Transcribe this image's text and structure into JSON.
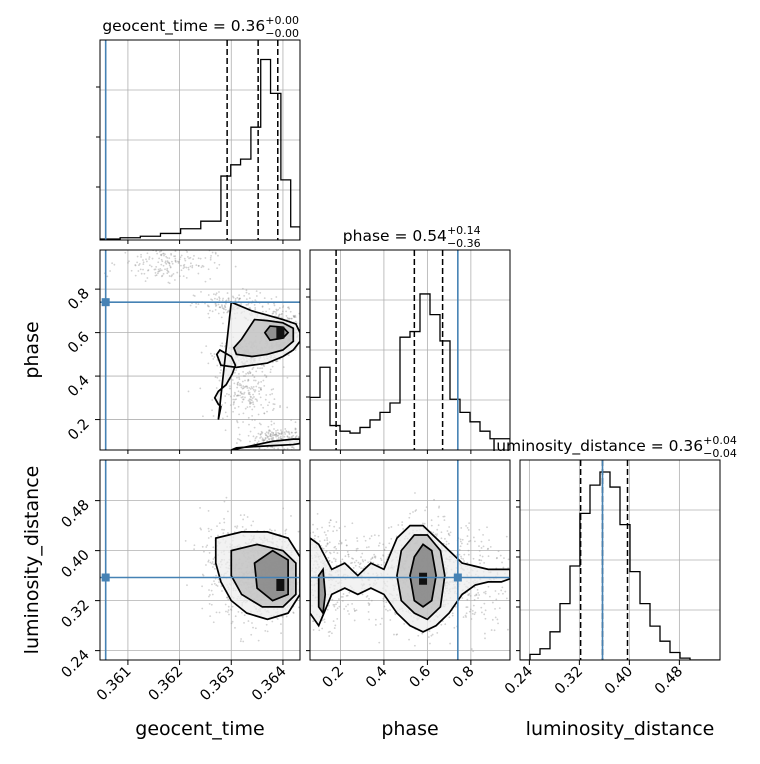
{
  "colors": {
    "truth": "#4682b4",
    "hist": "#000000",
    "grid": "#b0b0b0",
    "scatter": "#9a9a9a",
    "frame": "#000000"
  },
  "chart_data": {
    "type": "corner",
    "parameters": [
      "geocent_time",
      "phase",
      "luminosity_distance"
    ],
    "axis_labels": {
      "geocent_time": "geocent_time",
      "phase": "phase",
      "luminosity_distance": "luminosity_distance"
    },
    "ranges": {
      "geocent_time": [
        0.36046,
        0.36433
      ],
      "phase": [
        0.06,
        0.98
      ],
      "luminosity_distance": [
        0.225,
        0.545
      ]
    },
    "ticks": {
      "geocent_time": {
        "values": [
          0.361,
          0.362,
          0.363,
          0.364
        ],
        "labels": [
          "0.361",
          "0.362",
          "0.363",
          "0.364"
        ]
      },
      "phase": {
        "values": [
          0.2,
          0.4,
          0.6,
          0.8
        ],
        "labels": [
          "0.2",
          "0.4",
          "0.6",
          "0.8"
        ]
      },
      "luminosity_distance": {
        "values": [
          0.24,
          0.32,
          0.4,
          0.48
        ],
        "labels": [
          "0.24",
          "0.32",
          "0.40",
          "0.48"
        ]
      }
    },
    "truths": {
      "geocent_time": 0.36057,
      "phase": 0.74,
      "luminosity_distance": 0.357
    },
    "titles": [
      {
        "param": "geocent_time",
        "text": "geocent_time = 0.36",
        "sup": "+0.00",
        "sub": "−0.00"
      },
      {
        "param": "phase",
        "text": "phase = 0.54",
        "sup": "+0.14",
        "sub": "−0.36"
      },
      {
        "param": "luminosity_distance",
        "text": "luminosity_distance = 0.36",
        "sup": "+0.04",
        "sub": "−0.04"
      }
    ],
    "quantiles": {
      "geocent_time": [
        0.36292,
        0.36352,
        0.3639
      ],
      "phase": [
        0.18,
        0.54,
        0.67
      ],
      "luminosity_distance": [
        0.322,
        0.357,
        0.397
      ]
    },
    "histograms": {
      "geocent_time": {
        "edges": [
          0.36046,
          0.36085,
          0.36124,
          0.36163,
          0.36202,
          0.36241,
          0.3628,
          0.36299,
          0.36318,
          0.36338,
          0.36357,
          0.36376,
          0.36396,
          0.36415,
          0.36433
        ],
        "counts": [
          0.005,
          0.012,
          0.02,
          0.035,
          0.06,
          0.1,
          0.34,
          0.4,
          0.43,
          0.6,
          0.96,
          0.78,
          0.32,
          0.07
        ]
      },
      "phase": {
        "edges": [
          0.06,
          0.106,
          0.152,
          0.198,
          0.244,
          0.29,
          0.336,
          0.382,
          0.428,
          0.474,
          0.52,
          0.566,
          0.612,
          0.658,
          0.704,
          0.75,
          0.796,
          0.842,
          0.888,
          0.934,
          0.98
        ],
        "counts": [
          0.28,
          0.44,
          0.13,
          0.1,
          0.09,
          0.12,
          0.16,
          0.2,
          0.25,
          0.6,
          0.63,
          0.83,
          0.72,
          0.58,
          0.27,
          0.2,
          0.15,
          0.1,
          0.06,
          0.06
        ]
      },
      "luminosity_distance": {
        "edges": [
          0.225,
          0.241,
          0.257,
          0.273,
          0.289,
          0.305,
          0.321,
          0.337,
          0.353,
          0.369,
          0.385,
          0.401,
          0.417,
          0.433,
          0.449,
          0.465,
          0.481,
          0.497,
          0.513,
          0.529,
          0.545
        ],
        "counts": [
          0.0,
          0.03,
          0.06,
          0.15,
          0.3,
          0.5,
          0.78,
          0.93,
          1.0,
          0.92,
          0.72,
          0.47,
          0.3,
          0.18,
          0.1,
          0.04,
          0.01,
          0.0,
          0.0,
          0.0
        ]
      }
    },
    "samples_2d": [
      {
        "x": "geocent_time",
        "y": "phase",
        "clusters": [
          {
            "cx": 0.36395,
            "cy": 0.6,
            "sx": 0.00018,
            "sy": 0.05,
            "n": 480
          },
          {
            "cx": 0.3633,
            "cy": 0.5,
            "sx": 0.0003,
            "sy": 0.035,
            "n": 260
          },
          {
            "cx": 0.363,
            "cy": 0.72,
            "sx": 0.00035,
            "sy": 0.035,
            "n": 160
          },
          {
            "cx": 0.3633,
            "cy": 0.32,
            "sx": 0.0003,
            "sy": 0.06,
            "n": 200
          },
          {
            "cx": 0.3639,
            "cy": 0.11,
            "sx": 0.0003,
            "sy": 0.03,
            "n": 220
          },
          {
            "cx": 0.36175,
            "cy": 0.92,
            "sx": 0.00045,
            "sy": 0.04,
            "n": 180
          }
        ],
        "contours": [
          {
            "level": "outer",
            "x": [
              0.363,
              0.3634,
              0.3637,
              0.364,
              0.36425,
              0.36433,
              0.36433,
              0.3642,
              0.364,
              0.3637,
              0.3634,
              0.3631,
              0.3628,
              0.36272,
              0.36278,
              0.363,
              0.36308,
              0.36302,
              0.3629,
              0.36275,
              0.36268,
              0.36275,
              0.3628,
              0.36275,
              0.363
            ],
            "y": [
              0.74,
              0.7,
              0.68,
              0.66,
              0.64,
              0.6,
              0.56,
              0.52,
              0.49,
              0.46,
              0.45,
              0.44,
              0.45,
              0.5,
              0.52,
              0.49,
              0.45,
              0.41,
              0.36,
              0.33,
              0.3,
              0.27,
              0.26,
              0.2,
              0.74
            ]
          },
          {
            "level": "middle",
            "x": [
              0.36345,
              0.3637,
              0.364,
              0.3642,
              0.3642,
              0.364,
              0.3637,
              0.3634,
              0.3631,
              0.36305,
              0.3632,
              0.36345
            ],
            "y": [
              0.66,
              0.655,
              0.645,
              0.62,
              0.56,
              0.52,
              0.5,
              0.49,
              0.5,
              0.53,
              0.57,
              0.66
            ]
          },
          {
            "level": "inner",
            "x": [
              0.36375,
              0.364,
              0.3641,
              0.364,
              0.36375,
              0.36365,
              0.36375
            ],
            "y": [
              0.63,
              0.625,
              0.6,
              0.575,
              0.565,
              0.6,
              0.63
            ]
          }
        ],
        "lower_contour": {
          "x": [
            0.363,
            0.3634,
            0.3638,
            0.3642,
            0.36433,
            0.36433,
            0.3642,
            0.3638,
            0.3634,
            0.3631,
            0.363
          ],
          "y": [
            0.06,
            0.08,
            0.1,
            0.11,
            0.11,
            0.09,
            0.085,
            0.08,
            0.075,
            0.07,
            0.06
          ]
        }
      },
      {
        "x": "geocent_time",
        "y": "luminosity_distance",
        "clusters": [
          {
            "cx": 0.3636,
            "cy": 0.36,
            "sx": 0.00035,
            "sy": 0.035,
            "n": 700
          },
          {
            "cx": 0.36395,
            "cy": 0.36,
            "sx": 0.00015,
            "sy": 0.03,
            "n": 300
          },
          {
            "cx": 0.363,
            "cy": 0.38,
            "sx": 0.0003,
            "sy": 0.04,
            "n": 250
          }
        ],
        "contours": [
          {
            "level": "outer",
            "x": [
              0.3627,
              0.3632,
              0.3637,
              0.3641,
              0.36433,
              0.36433,
              0.3641,
              0.3637,
              0.3633,
              0.363,
              0.3628,
              0.3627,
              0.3627
            ],
            "y": [
              0.42,
              0.43,
              0.43,
              0.42,
              0.39,
              0.33,
              0.3,
              0.29,
              0.3,
              0.32,
              0.35,
              0.38,
              0.42
            ]
          },
          {
            "level": "middle",
            "x": [
              0.363,
              0.3635,
              0.364,
              0.36425,
              0.36425,
              0.364,
              0.3636,
              0.3632,
              0.363,
              0.363
            ],
            "y": [
              0.4,
              0.41,
              0.4,
              0.38,
              0.33,
              0.31,
              0.31,
              0.33,
              0.36,
              0.4
            ]
          },
          {
            "level": "inner",
            "x": [
              0.36345,
              0.3638,
              0.3641,
              0.3641,
              0.3638,
              0.3635,
              0.36345
            ],
            "y": [
              0.38,
              0.4,
              0.385,
              0.33,
              0.32,
              0.34,
              0.38
            ]
          }
        ]
      },
      {
        "x": "phase",
        "y": "luminosity_distance",
        "clusters": [
          {
            "cx": 0.58,
            "cy": 0.36,
            "sx": 0.09,
            "sy": 0.04,
            "n": 700
          },
          {
            "cx": 0.12,
            "cy": 0.36,
            "sx": 0.05,
            "sy": 0.04,
            "n": 300
          },
          {
            "cx": 0.78,
            "cy": 0.36,
            "sx": 0.12,
            "sy": 0.04,
            "n": 300
          },
          {
            "cx": 0.3,
            "cy": 0.36,
            "sx": 0.08,
            "sy": 0.03,
            "n": 180
          }
        ],
        "contours": [
          {
            "level": "outer",
            "x": [
              0.06,
              0.1,
              0.16,
              0.22,
              0.28,
              0.34,
              0.4,
              0.46,
              0.52,
              0.58,
              0.64,
              0.7,
              0.76,
              0.82,
              0.88,
              0.94,
              0.98,
              0.98,
              0.94,
              0.88,
              0.82,
              0.76,
              0.7,
              0.64,
              0.58,
              0.52,
              0.46,
              0.4,
              0.34,
              0.28,
              0.22,
              0.16,
              0.1,
              0.06,
              0.06
            ],
            "y": [
              0.42,
              0.41,
              0.37,
              0.38,
              0.36,
              0.38,
              0.37,
              0.42,
              0.44,
              0.44,
              0.42,
              0.4,
              0.38,
              0.375,
              0.37,
              0.37,
              0.37,
              0.355,
              0.35,
              0.35,
              0.345,
              0.33,
              0.3,
              0.28,
              0.27,
              0.28,
              0.3,
              0.33,
              0.34,
              0.33,
              0.34,
              0.33,
              0.28,
              0.3,
              0.42
            ]
          },
          {
            "level": "middle",
            "x": [
              0.48,
              0.54,
              0.6,
              0.66,
              0.68,
              0.66,
              0.6,
              0.54,
              0.48,
              0.46,
              0.48
            ],
            "y": [
              0.4,
              0.425,
              0.425,
              0.4,
              0.36,
              0.31,
              0.29,
              0.3,
              0.32,
              0.36,
              0.4
            ]
          },
          {
            "level": "inner",
            "x": [
              0.54,
              0.58,
              0.62,
              0.64,
              0.62,
              0.58,
              0.54,
              0.52,
              0.54
            ],
            "y": [
              0.39,
              0.41,
              0.4,
              0.36,
              0.32,
              0.31,
              0.32,
              0.36,
              0.39
            ]
          },
          {
            "level": "inner",
            "x": [
              0.1,
              0.12,
              0.13,
              0.12,
              0.1,
              0.1
            ],
            "y": [
              0.36,
              0.37,
              0.33,
              0.3,
              0.31,
              0.36
            ]
          }
        ]
      }
    ],
    "labels_2d_hist_darkest": [
      {
        "x": "geocent_time",
        "y": "phase",
        "cx": 0.36395,
        "cy": 0.6
      },
      {
        "x": "geocent_time",
        "y": "luminosity_distance",
        "cx": 0.36395,
        "cy": 0.345
      },
      {
        "x": "phase",
        "y": "luminosity_distance",
        "cx": 0.58,
        "cy": 0.355
      }
    ]
  }
}
